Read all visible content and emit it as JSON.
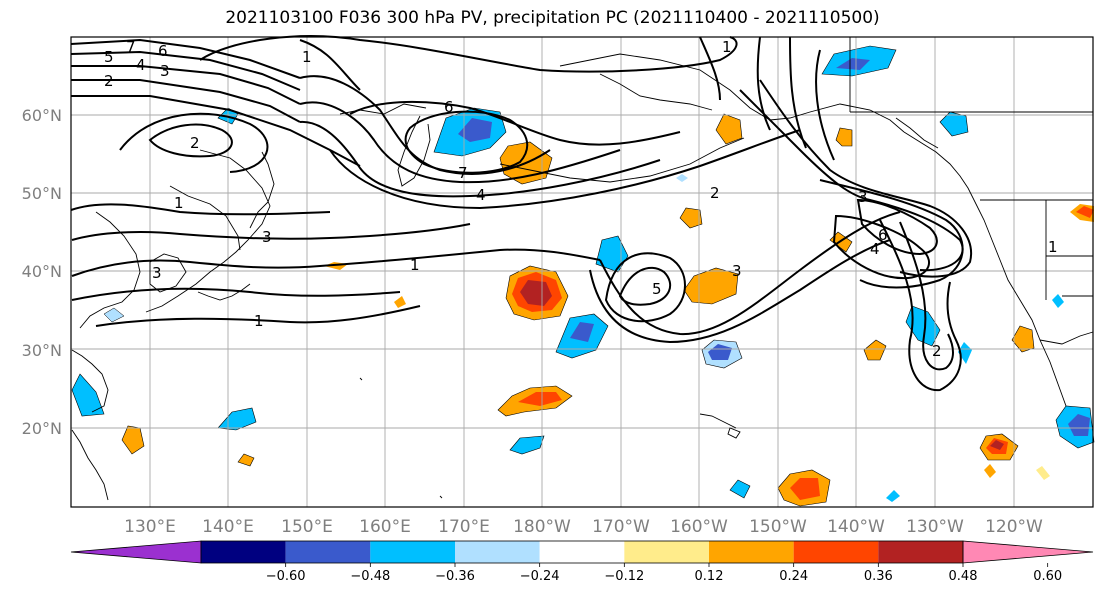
{
  "title": "2021103100 F036 300 hPa PV, precipitation PC (2021110400 - 2021110500)",
  "lat_labels": [
    "60°N",
    "50°N",
    "40°N",
    "30°N",
    "20°N"
  ],
  "lon_labels": [
    "130°E",
    "140°E",
    "150°E",
    "160°E",
    "170°E",
    "180°W",
    "170°W",
    "160°W",
    "150°W",
    "140°W",
    "130°W",
    "120°W"
  ],
  "contour_labels": [
    "7",
    "6",
    "5",
    "4",
    "3",
    "2",
    "1",
    "2",
    "6",
    "7",
    "4",
    "1",
    "3",
    "3",
    "1",
    "1",
    "1",
    "2",
    "3",
    "5",
    "3",
    "6",
    "4",
    "1",
    "2"
  ],
  "colorbar": {
    "ticks": [
      "−0.60",
      "−0.48",
      "−0.36",
      "−0.24",
      "−0.12",
      "0.12",
      "0.24",
      "0.36",
      "0.48",
      "0.60"
    ],
    "colors": [
      "#9b30d0",
      "#000080",
      "#3a5acc",
      "#00bfff",
      "#b0e0ff",
      "#ffffff",
      "#ffec8b",
      "#ffa500",
      "#ff4500",
      "#b22222",
      "#ff88b4"
    ]
  },
  "colors": {
    "neg_strong": "#3a5acc",
    "neg_mid": "#00bfff",
    "neg_light": "#b0e0ff",
    "pos_light": "#ffec8b",
    "pos_mid": "#ffa500",
    "pos_strong": "#ff4500",
    "pos_dark": "#b22222"
  }
}
